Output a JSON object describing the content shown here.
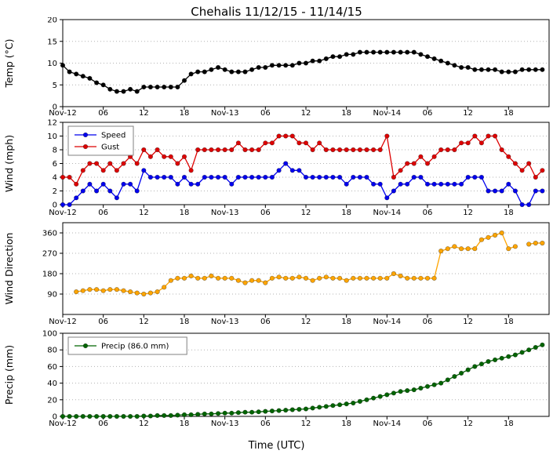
{
  "title": "Chehalis 11/12/15 - 11/14/15",
  "xlabel": "Time (UTC)",
  "x_ticks": {
    "labels": [
      "Nov-12",
      "06",
      "12",
      "18",
      "Nov-13",
      "06",
      "12",
      "18",
      "Nov-14",
      "06",
      "12",
      "18"
    ],
    "hours": [
      0,
      6,
      12,
      18,
      24,
      30,
      36,
      42,
      48,
      54,
      60,
      66
    ]
  },
  "chart_data": [
    {
      "type": "line",
      "ylabel": "Temp (°C)",
      "ylim": [
        0,
        20
      ],
      "yticks": [
        0,
        5,
        10,
        15,
        20
      ],
      "grid": true,
      "show_legend": false,
      "series": [
        {
          "name": "Temp",
          "color": "#000000",
          "values": [
            9.5,
            8,
            7.5,
            7,
            6.5,
            5.5,
            5,
            4,
            3.5,
            3.5,
            4,
            3.5,
            4.5,
            4.5,
            4.5,
            4.5,
            4.5,
            4.5,
            6,
            7.5,
            8,
            8,
            8.5,
            9,
            8.5,
            8,
            8,
            8,
            8.5,
            9,
            9,
            9.5,
            9.5,
            9.5,
            9.5,
            10,
            10,
            10.5,
            10.5,
            11,
            11.5,
            11.5,
            12,
            12,
            12.5,
            12.5,
            12.5,
            12.5,
            12.5,
            12.5,
            12.5,
            12.5,
            12.5,
            12,
            11.5,
            11,
            10.5,
            10,
            9.5,
            9,
            9,
            8.5,
            8.5,
            8.5,
            8.5,
            8,
            8,
            8,
            8.5,
            8.5,
            8.5,
            8.5
          ]
        }
      ]
    },
    {
      "type": "line",
      "ylabel": "Wind (mph)",
      "ylim": [
        0,
        12
      ],
      "yticks": [
        0,
        2,
        4,
        6,
        8,
        10,
        12
      ],
      "grid": true,
      "show_legend": true,
      "legend_position": "top-left",
      "series": [
        {
          "name": "Speed",
          "color": "#0000ee",
          "values": [
            0,
            0,
            1,
            2,
            3,
            2,
            3,
            2,
            1,
            3,
            3,
            2,
            5,
            4,
            4,
            4,
            4,
            3,
            4,
            3,
            3,
            4,
            4,
            4,
            4,
            3,
            4,
            4,
            4,
            4,
            4,
            4,
            5,
            6,
            5,
            5,
            4,
            4,
            4,
            4,
            4,
            4,
            3,
            4,
            4,
            4,
            3,
            3,
            1,
            2,
            3,
            3,
            4,
            4,
            3,
            3,
            3,
            3,
            3,
            3,
            4,
            4,
            4,
            2,
            2,
            2,
            3,
            2,
            0,
            0,
            2,
            2
          ]
        },
        {
          "name": "Gust",
          "color": "#dd0000",
          "values": [
            4,
            4,
            3,
            5,
            6,
            6,
            5,
            6,
            5,
            6,
            7,
            6,
            8,
            7,
            8,
            7,
            7,
            6,
            7,
            5,
            8,
            8,
            8,
            8,
            8,
            8,
            9,
            8,
            8,
            8,
            9,
            9,
            10,
            10,
            10,
            9,
            9,
            8,
            9,
            8,
            8,
            8,
            8,
            8,
            8,
            8,
            8,
            8,
            10,
            4,
            5,
            6,
            6,
            7,
            6,
            7,
            8,
            8,
            8,
            9,
            9,
            10,
            9,
            10,
            10,
            8,
            7,
            6,
            5,
            6,
            4,
            5
          ]
        }
      ]
    },
    {
      "type": "line",
      "ylabel": "Wind Direction",
      "ylim": [
        0,
        405
      ],
      "yticks": [
        90,
        180,
        270,
        360
      ],
      "grid": true,
      "show_legend": false,
      "series": [
        {
          "name": "Direction",
          "color": "#ffa500",
          "values": [
            null,
            null,
            100,
            105,
            110,
            110,
            105,
            110,
            110,
            105,
            100,
            95,
            90,
            95,
            100,
            120,
            150,
            160,
            160,
            170,
            160,
            160,
            170,
            160,
            160,
            160,
            150,
            140,
            150,
            150,
            140,
            160,
            165,
            160,
            160,
            165,
            160,
            150,
            160,
            165,
            160,
            160,
            150,
            160,
            160,
            160,
            160,
            160,
            160,
            180,
            170,
            160,
            160,
            160,
            160,
            160,
            280,
            290,
            300,
            290,
            290,
            290,
            330,
            340,
            350,
            360,
            290,
            300,
            null,
            310,
            315,
            315
          ]
        }
      ]
    },
    {
      "type": "line",
      "ylabel": "Precip (mm)",
      "ylim": [
        0,
        100
      ],
      "yticks": [
        0,
        20,
        40,
        60,
        80,
        100
      ],
      "grid": true,
      "show_legend": true,
      "legend_position": "top-left",
      "series": [
        {
          "name": "Precip (86.0 mm)",
          "color": "#006400",
          "values": [
            0,
            0,
            0,
            0,
            0,
            0,
            0,
            0,
            0,
            0,
            0,
            0,
            0.5,
            0.5,
            1,
            1,
            1,
            1.5,
            2,
            2,
            2.5,
            3,
            3,
            3.5,
            4,
            4,
            4.5,
            5,
            5,
            5.5,
            6,
            6.5,
            7,
            7.5,
            8,
            8.5,
            9,
            10,
            11,
            12,
            13,
            14,
            15,
            16,
            18,
            20,
            22,
            24,
            26,
            28,
            30,
            31,
            32,
            34,
            36,
            38,
            40,
            44,
            48,
            52,
            56,
            60,
            63,
            66,
            68,
            70,
            72,
            74,
            77,
            80,
            83,
            86
          ]
        }
      ]
    }
  ]
}
